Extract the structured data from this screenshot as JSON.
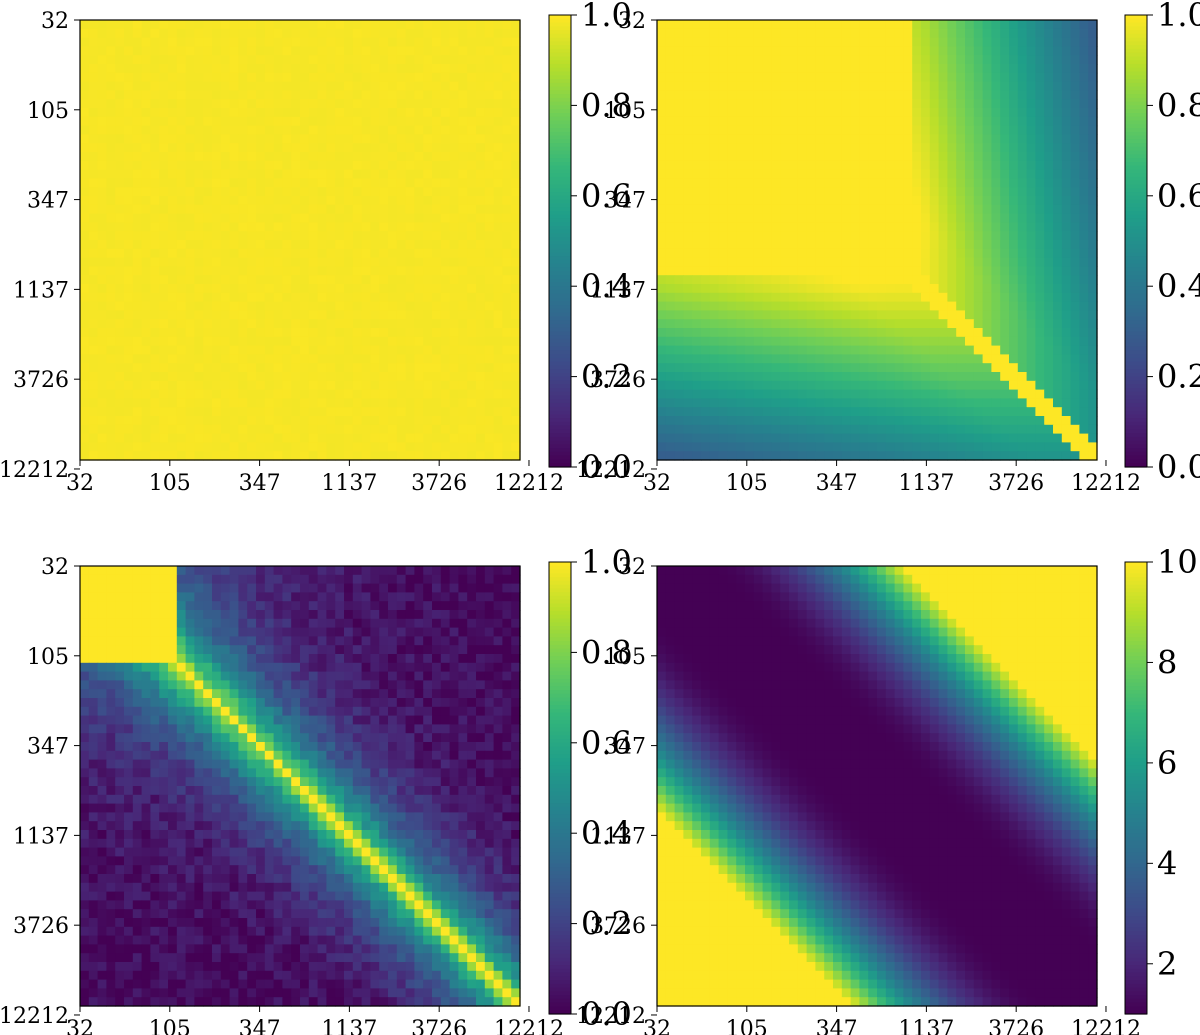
{
  "chart_data": [
    {
      "type": "heatmap",
      "position": "top-left",
      "pattern": "uniform",
      "grid_size": 50,
      "tick_labels": [
        "32",
        "105",
        "347",
        "1137",
        "3726",
        "12212"
      ],
      "colorbar": {
        "ticks": [
          "0.0",
          "0.2",
          "0.4",
          "0.6",
          "0.8",
          "1.0"
        ],
        "range": [
          0,
          1
        ]
      },
      "value_description": "all cells approximately 1.0"
    },
    {
      "type": "heatmap",
      "position": "top-right",
      "pattern": "block-with-decaying-offdiagonal",
      "grid_size": 50,
      "tick_labels": [
        "32",
        "105",
        "347",
        "1137",
        "3726",
        "12212"
      ],
      "colorbar": {
        "ticks": [
          "0.0",
          "0.2",
          "0.4",
          "0.6",
          "0.8",
          "1.0"
        ],
        "range": [
          0,
          1
        ]
      },
      "value_description": "1.0 where both indices below about 1137; off-diagonal corners decay to about 0.35-0.45"
    },
    {
      "type": "heatmap",
      "position": "bottom-left",
      "pattern": "diagonal",
      "grid_size": 50,
      "tick_labels": [
        "32",
        "105",
        "347",
        "1137",
        "3726",
        "12212"
      ],
      "colorbar": {
        "ticks": [
          "0.0",
          "0.2",
          "0.4",
          "0.6",
          "0.8",
          "1.0"
        ],
        "range": [
          0,
          1
        ]
      },
      "value_description": "1.0 on diagonal and in top-left block; off-diagonal values mostly 0.0-0.5"
    },
    {
      "type": "heatmap",
      "position": "bottom-right",
      "pattern": "anti-corner",
      "grid_size": 50,
      "tick_labels": [
        "32",
        "105",
        "347",
        "1137",
        "3726",
        "12212"
      ],
      "colorbar": {
        "ticks": [
          "2",
          "4",
          "6",
          "8",
          "10"
        ],
        "range": [
          1,
          10
        ]
      },
      "value_description": "about 1 along the diagonal band; saturates at 10 in the top-right and bottom-left corners"
    }
  ]
}
